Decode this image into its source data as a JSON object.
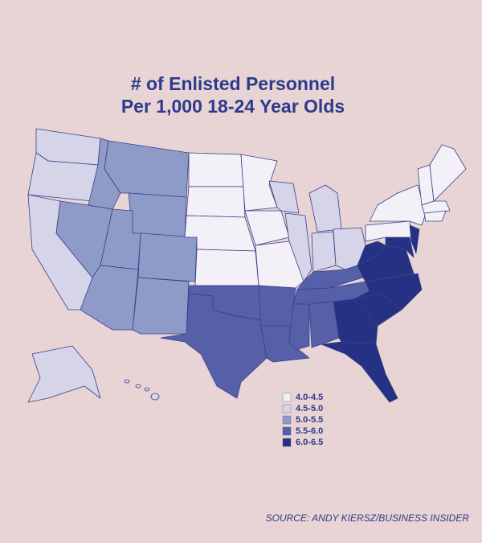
{
  "title_lines": [
    "# of Enlisted Personnel",
    "Per 1,000 18-24 Year Olds"
  ],
  "legend": [
    {
      "label": "4.0-4.5",
      "color": "#f3f0f7"
    },
    {
      "label": "4.5-5.0",
      "color": "#d5d4e8"
    },
    {
      "label": "5.0-5.5",
      "color": "#8e9bc9"
    },
    {
      "label": "5.5-6.0",
      "color": "#5560a8"
    },
    {
      "label": "6.0-6.5",
      "color": "#253283"
    }
  ],
  "source": "SOURCE: ANDY KIERSZ/BUSINESS INSIDER"
}
